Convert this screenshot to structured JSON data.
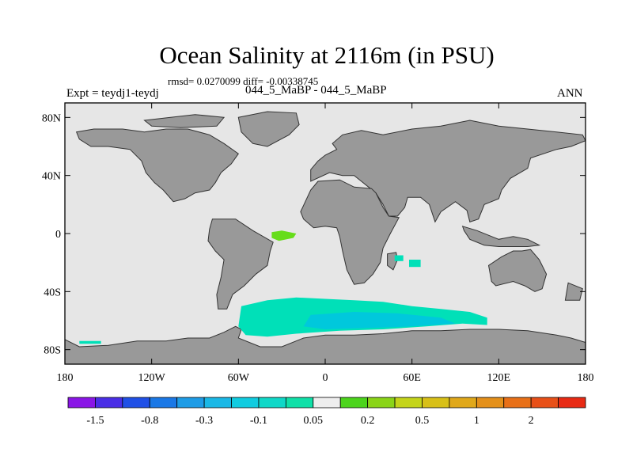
{
  "title": "Ocean Salinity at 2116m (in PSU)",
  "stats": "rmsd= 0.0270099 diff= -0.00338745",
  "expt": "Expt = teydj1-teydj",
  "runs": "044_5_MaBP - 044_5_MaBP",
  "period": "ANN",
  "map": {
    "lon_range": [
      -180,
      180
    ],
    "lat_range": [
      -90,
      90
    ],
    "ocean_color": "#e6e6e6",
    "land_color": "#999999",
    "lat_ticks": [
      {
        "lat": 80,
        "label": "80N"
      },
      {
        "lat": 40,
        "label": "40N"
      },
      {
        "lat": 0,
        "label": "0"
      },
      {
        "lat": -40,
        "label": "40S"
      },
      {
        "lat": -80,
        "label": "80S"
      }
    ],
    "lon_ticks": [
      {
        "lon": -180,
        "label": "180"
      },
      {
        "lon": -120,
        "label": "120W"
      },
      {
        "lon": -60,
        "label": "60W"
      },
      {
        "lon": 0,
        "label": "0"
      },
      {
        "lon": 60,
        "label": "60E"
      },
      {
        "lon": 120,
        "label": "120E"
      },
      {
        "lon": 180,
        "label": "180"
      }
    ],
    "land": [
      {
        "name": "north-america",
        "coords": [
          [
            -172,
            70
          ],
          [
            -160,
            72
          ],
          [
            -140,
            72
          ],
          [
            -125,
            70
          ],
          [
            -110,
            72
          ],
          [
            -95,
            72
          ],
          [
            -80,
            68
          ],
          [
            -70,
            62
          ],
          [
            -60,
            55
          ],
          [
            -65,
            48
          ],
          [
            -72,
            42
          ],
          [
            -76,
            35
          ],
          [
            -80,
            30
          ],
          [
            -90,
            28
          ],
          [
            -97,
            24
          ],
          [
            -105,
            22
          ],
          [
            -112,
            30
          ],
          [
            -118,
            35
          ],
          [
            -124,
            42
          ],
          [
            -127,
            50
          ],
          [
            -135,
            58
          ],
          [
            -150,
            60
          ],
          [
            -162,
            60
          ],
          [
            -170,
            65
          ]
        ]
      },
      {
        "name": "greenland",
        "coords": [
          [
            -60,
            80
          ],
          [
            -40,
            84
          ],
          [
            -20,
            83
          ],
          [
            -18,
            75
          ],
          [
            -25,
            68
          ],
          [
            -40,
            60
          ],
          [
            -50,
            62
          ],
          [
            -58,
            70
          ]
        ]
      },
      {
        "name": "canadian-arctic",
        "coords": [
          [
            -125,
            78
          ],
          [
            -90,
            82
          ],
          [
            -70,
            80
          ],
          [
            -75,
            74
          ],
          [
            -100,
            73
          ],
          [
            -120,
            74
          ]
        ]
      },
      {
        "name": "south-america",
        "coords": [
          [
            -78,
            10
          ],
          [
            -62,
            10
          ],
          [
            -50,
            2
          ],
          [
            -36,
            -6
          ],
          [
            -38,
            -12
          ],
          [
            -40,
            -22
          ],
          [
            -48,
            -28
          ],
          [
            -56,
            -36
          ],
          [
            -64,
            -42
          ],
          [
            -68,
            -52
          ],
          [
            -74,
            -52
          ],
          [
            -75,
            -42
          ],
          [
            -72,
            -30
          ],
          [
            -70,
            -18
          ],
          [
            -76,
            -12
          ],
          [
            -81,
            -5
          ],
          [
            -80,
            3
          ]
        ]
      },
      {
        "name": "eurasia",
        "coords": [
          [
            -10,
            36
          ],
          [
            -10,
            44
          ],
          [
            -5,
            50
          ],
          [
            0,
            54
          ],
          [
            8,
            58
          ],
          [
            5,
            62
          ],
          [
            12,
            68
          ],
          [
            25,
            71
          ],
          [
            40,
            68
          ],
          [
            60,
            72
          ],
          [
            80,
            74
          ],
          [
            100,
            78
          ],
          [
            120,
            74
          ],
          [
            140,
            72
          ],
          [
            160,
            70
          ],
          [
            178,
            68
          ],
          [
            180,
            64
          ],
          [
            170,
            60
          ],
          [
            160,
            58
          ],
          [
            142,
            52
          ],
          [
            140,
            45
          ],
          [
            128,
            38
          ],
          [
            122,
            30
          ],
          [
            120,
            24
          ],
          [
            110,
            20
          ],
          [
            106,
            10
          ],
          [
            100,
            8
          ],
          [
            98,
            16
          ],
          [
            90,
            22
          ],
          [
            80,
            15
          ],
          [
            76,
            8
          ],
          [
            72,
            20
          ],
          [
            66,
            25
          ],
          [
            57,
            25
          ],
          [
            55,
            18
          ],
          [
            50,
            12
          ],
          [
            44,
            12
          ],
          [
            40,
            20
          ],
          [
            35,
            28
          ],
          [
            30,
            32
          ],
          [
            25,
            36
          ],
          [
            20,
            40
          ],
          [
            12,
            40
          ],
          [
            3,
            42
          ]
        ]
      },
      {
        "name": "africa",
        "coords": [
          [
            -17,
            15
          ],
          [
            -10,
            30
          ],
          [
            -5,
            36
          ],
          [
            10,
            37
          ],
          [
            20,
            32
          ],
          [
            32,
            31
          ],
          [
            35,
            28
          ],
          [
            40,
            18
          ],
          [
            44,
            12
          ],
          [
            51,
            11
          ],
          [
            45,
            0
          ],
          [
            40,
            -10
          ],
          [
            38,
            -20
          ],
          [
            33,
            -28
          ],
          [
            27,
            -34
          ],
          [
            20,
            -35
          ],
          [
            15,
            -25
          ],
          [
            12,
            -12
          ],
          [
            10,
            -2
          ],
          [
            8,
            4
          ],
          [
            0,
            5
          ],
          [
            -8,
            4
          ],
          [
            -15,
            10
          ]
        ]
      },
      {
        "name": "madagascar",
        "coords": [
          [
            43,
            -14
          ],
          [
            49,
            -13
          ],
          [
            50,
            -18
          ],
          [
            47,
            -25
          ],
          [
            43,
            -22
          ]
        ]
      },
      {
        "name": "southeast-asia",
        "coords": [
          [
            95,
            5
          ],
          [
            105,
            2
          ],
          [
            115,
            -2
          ],
          [
            120,
            -4
          ],
          [
            130,
            -2
          ],
          [
            140,
            -4
          ],
          [
            148,
            -8
          ],
          [
            140,
            -9
          ],
          [
            130,
            -9
          ],
          [
            120,
            -9
          ],
          [
            110,
            -8
          ],
          [
            100,
            -4
          ],
          [
            96,
            2
          ]
        ]
      },
      {
        "name": "australia",
        "coords": [
          [
            113,
            -22
          ],
          [
            115,
            -33
          ],
          [
            118,
            -36
          ],
          [
            130,
            -33
          ],
          [
            138,
            -36
          ],
          [
            145,
            -40
          ],
          [
            150,
            -38
          ],
          [
            153,
            -28
          ],
          [
            148,
            -18
          ],
          [
            142,
            -11
          ],
          [
            136,
            -12
          ],
          [
            130,
            -12
          ],
          [
            122,
            -16
          ]
        ]
      },
      {
        "name": "new-zealand",
        "coords": [
          [
            168,
            -34
          ],
          [
            178,
            -38
          ],
          [
            176,
            -46
          ],
          [
            166,
            -46
          ]
        ]
      },
      {
        "name": "antarctica",
        "coords": [
          [
            -180,
            -73
          ],
          [
            -170,
            -78
          ],
          [
            -150,
            -77
          ],
          [
            -130,
            -74
          ],
          [
            -110,
            -74
          ],
          [
            -95,
            -72
          ],
          [
            -80,
            -72
          ],
          [
            -70,
            -68
          ],
          [
            -62,
            -64
          ],
          [
            -58,
            -66
          ],
          [
            -60,
            -72
          ],
          [
            -45,
            -78
          ],
          [
            -30,
            -78
          ],
          [
            -15,
            -72
          ],
          [
            0,
            -70
          ],
          [
            20,
            -70
          ],
          [
            40,
            -69
          ],
          [
            60,
            -67
          ],
          [
            80,
            -67
          ],
          [
            100,
            -66
          ],
          [
            120,
            -66
          ],
          [
            140,
            -67
          ],
          [
            160,
            -70
          ],
          [
            170,
            -72
          ],
          [
            180,
            -75
          ],
          [
            180,
            -90
          ],
          [
            -180,
            -90
          ]
        ]
      }
    ],
    "anomalies": [
      {
        "name": "southern-ocean-cyan-band",
        "color": "#00e0b8",
        "coords": [
          [
            -58,
            -50
          ],
          [
            -40,
            -46
          ],
          [
            -20,
            -44
          ],
          [
            0,
            -45
          ],
          [
            20,
            -46
          ],
          [
            40,
            -47
          ],
          [
            60,
            -50
          ],
          [
            80,
            -52
          ],
          [
            100,
            -54
          ],
          [
            112,
            -58
          ],
          [
            112,
            -63
          ],
          [
            95,
            -62
          ],
          [
            70,
            -64
          ],
          [
            40,
            -66
          ],
          [
            10,
            -67
          ],
          [
            -20,
            -69
          ],
          [
            -40,
            -71
          ],
          [
            -55,
            -70
          ],
          [
            -60,
            -64
          ]
        ]
      },
      {
        "name": "southern-ocean-blue-core",
        "color": "#00c8dc",
        "coords": [
          [
            -10,
            -56
          ],
          [
            20,
            -54
          ],
          [
            50,
            -55
          ],
          [
            80,
            -58
          ],
          [
            90,
            -62
          ],
          [
            60,
            -64
          ],
          [
            30,
            -65
          ],
          [
            0,
            -66
          ],
          [
            -15,
            -64
          ]
        ]
      },
      {
        "name": "amazon-green-patch",
        "color": "#66dd1a",
        "coords": [
          [
            -37,
            1
          ],
          [
            -30,
            2
          ],
          [
            -20,
            0
          ],
          [
            -22,
            -3
          ],
          [
            -32,
            -5
          ],
          [
            -37,
            -3
          ]
        ]
      },
      {
        "name": "pacific-cyan-strip",
        "color": "#00e0b8",
        "coords": [
          [
            -170,
            -74
          ],
          [
            -155,
            -74
          ],
          [
            -155,
            -76
          ],
          [
            -170,
            -76
          ]
        ]
      },
      {
        "name": "indian-ocean-cyan-spot",
        "color": "#00e0b8",
        "coords": [
          [
            58,
            -18
          ],
          [
            66,
            -18
          ],
          [
            66,
            -23
          ],
          [
            58,
            -23
          ]
        ]
      },
      {
        "name": "madagascar-cyan-spot",
        "color": "#00e0b8",
        "coords": [
          [
            48,
            -15
          ],
          [
            54,
            -15
          ],
          [
            54,
            -19
          ],
          [
            48,
            -19
          ]
        ]
      }
    ]
  },
  "legend": {
    "colors": [
      "#8a16e6",
      "#4a2ee6",
      "#2050e6",
      "#1a78e6",
      "#1e9ce6",
      "#1ab8e6",
      "#10cce0",
      "#10d8c8",
      "#10e0a8",
      "#eeeeee",
      "#4cd41c",
      "#8ad418",
      "#c4d41a",
      "#d8c018",
      "#e0a81a",
      "#e4901a",
      "#e87018",
      "#e85018",
      "#e82a14"
    ],
    "labels": [
      {
        "index": 1,
        "text": "-1.5"
      },
      {
        "index": 3,
        "text": "-0.8"
      },
      {
        "index": 5,
        "text": "-0.3"
      },
      {
        "index": 7,
        "text": "-0.1"
      },
      {
        "index": 9,
        "text": "0.05"
      },
      {
        "index": 11,
        "text": "0.2"
      },
      {
        "index": 13,
        "text": "0.5"
      },
      {
        "index": 15,
        "text": "1"
      },
      {
        "index": 17,
        "text": "2"
      }
    ]
  }
}
